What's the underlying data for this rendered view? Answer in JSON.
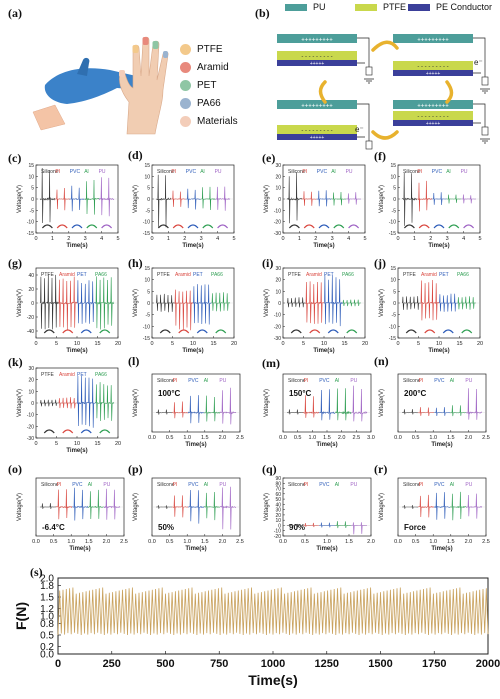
{
  "panel_labels": [
    "(a)",
    "(b)",
    "(c)",
    "(d)",
    "(e)",
    "(f)",
    "(g)",
    "(h)",
    "(i)",
    "(j)",
    "(k)",
    "(l)",
    "(m)",
    "(n)",
    "(o)",
    "(p)",
    "(q)",
    "(r)",
    "(s)"
  ],
  "legend_a": [
    {
      "label": "PTFE",
      "color": "#F3C98B"
    },
    {
      "label": "Aramid",
      "color": "#E8897C"
    },
    {
      "label": "PET",
      "color": "#8FC6A4"
    },
    {
      "label": "PA66",
      "color": "#9AB3CF"
    },
    {
      "label": "Materials",
      "color": "#F3CDB9"
    }
  ],
  "legend_b": [
    {
      "label": "PU",
      "color": "#4D9E9A"
    },
    {
      "label": "PTFE",
      "color": "#C9D84C"
    },
    {
      "label": "PE Conductor",
      "color": "#3B3F9A"
    }
  ],
  "b_charges": {
    "plus_long": "+++++++++",
    "minus_long": "- - - - - - - - -",
    "plus_short": "+++++",
    "electron": "e⁻"
  },
  "voltage_label": "Voltage(V)",
  "time_label": "Time(s)",
  "force_label": "F(N)",
  "chart_data": [
    {
      "id": "c",
      "type": "line",
      "series_names": [
        "Silicone",
        "PI",
        "PVC",
        "Al",
        "PU"
      ],
      "series_colors": [
        "#333333",
        "#D9463E",
        "#2C5BB8",
        "#2E9E52",
        "#9E62C4"
      ],
      "ylim": [
        -15,
        15
      ],
      "yticks": [
        15,
        10,
        5,
        0,
        -5,
        -10,
        -15
      ],
      "xticks": [
        0,
        1,
        2,
        3,
        4,
        5
      ],
      "peaks": [
        [
          14,
          -12
        ],
        [
          5,
          -5
        ],
        [
          6,
          -6
        ],
        [
          9,
          -7
        ],
        [
          10,
          -8
        ]
      ],
      "annotation": ""
    },
    {
      "id": "d",
      "type": "line",
      "series_names": [
        "Silicone",
        "PI",
        "PVC",
        "Al",
        "PU"
      ],
      "series_colors": [
        "#333333",
        "#D9463E",
        "#2C5BB8",
        "#2E9E52",
        "#9E62C4"
      ],
      "ylim": [
        -15,
        15
      ],
      "yticks": [
        15,
        10,
        5,
        0,
        -5,
        -10,
        -15
      ],
      "xticks": [
        0,
        1,
        2,
        3,
        4,
        5
      ],
      "peaks": [
        [
          12,
          -13
        ],
        [
          4,
          -4
        ],
        [
          5,
          -5
        ],
        [
          6,
          -5
        ],
        [
          6,
          -6
        ]
      ],
      "annotation": ""
    },
    {
      "id": "e",
      "type": "line",
      "series_names": [
        "Silicone",
        "PI",
        "PVC",
        "Al",
        "PU"
      ],
      "series_colors": [
        "#333333",
        "#D9463E",
        "#2C5BB8",
        "#2E9E52",
        "#9E62C4"
      ],
      "ylim": [
        -30,
        30
      ],
      "yticks": [
        30,
        20,
        10,
        0,
        -10,
        -20,
        -30
      ],
      "xticks": [
        0,
        1,
        2,
        3,
        4,
        5
      ],
      "peaks": [
        [
          25,
          -22
        ],
        [
          8,
          -6
        ],
        [
          8,
          -7
        ],
        [
          7,
          -6
        ],
        [
          6,
          -5
        ]
      ],
      "annotation": ""
    },
    {
      "id": "f",
      "type": "line",
      "series_names": [
        "Silicone",
        "PI",
        "PVC",
        "Al",
        "PU"
      ],
      "series_colors": [
        "#333333",
        "#D9463E",
        "#2C5BB8",
        "#2E9E52",
        "#9E62C4"
      ],
      "ylim": [
        -15,
        15
      ],
      "yticks": [
        15,
        10,
        5,
        0,
        -5,
        -10,
        -15
      ],
      "xticks": [
        0,
        1,
        2,
        3,
        4,
        5
      ],
      "peaks": [
        [
          12,
          -13
        ],
        [
          8,
          -6
        ],
        [
          3,
          -3
        ],
        [
          2,
          -2
        ],
        [
          2,
          -2
        ]
      ],
      "annotation": ""
    },
    {
      "id": "g",
      "type": "line",
      "series_names": [
        "PTFE",
        "Aramid",
        "PET",
        "PA66"
      ],
      "series_colors": [
        "#333333",
        "#D9463E",
        "#2C5BB8",
        "#2E9E52"
      ],
      "ylim": [
        -50,
        50
      ],
      "yticks": [
        40,
        20,
        0,
        -20,
        -40
      ],
      "xticks": [
        0,
        5,
        10,
        15,
        20
      ],
      "peaks": [
        [
          42,
          -40
        ],
        [
          38,
          -38
        ],
        [
          34,
          -32
        ],
        [
          40,
          -38
        ]
      ],
      "annotation": ""
    },
    {
      "id": "h",
      "type": "line",
      "series_names": [
        "PTFE",
        "Aramid",
        "PET",
        "PA66"
      ],
      "series_colors": [
        "#333333",
        "#D9463E",
        "#2C5BB8",
        "#2E9E52"
      ],
      "ylim": [
        -15,
        15
      ],
      "yticks": [
        15,
        10,
        5,
        0,
        -5,
        -10,
        -15
      ],
      "xticks": [
        0,
        5,
        10,
        15,
        20
      ],
      "peaks": [
        [
          4,
          -4
        ],
        [
          6,
          -12
        ],
        [
          9,
          -10
        ],
        [
          5,
          -4
        ]
      ],
      "annotation": ""
    },
    {
      "id": "i",
      "type": "line",
      "series_names": [
        "PTFE",
        "Aramid",
        "PET",
        "PA66"
      ],
      "series_colors": [
        "#333333",
        "#D9463E",
        "#2C5BB8",
        "#2E9E52"
      ],
      "ylim": [
        -30,
        30
      ],
      "yticks": [
        30,
        20,
        10,
        0,
        -10,
        -20,
        -30
      ],
      "xticks": [
        0,
        5,
        10,
        15,
        20
      ],
      "peaks": [
        [
          5,
          -4
        ],
        [
          20,
          -18
        ],
        [
          25,
          -20
        ],
        [
          3,
          -3
        ]
      ],
      "annotation": ""
    },
    {
      "id": "j",
      "type": "line",
      "series_names": [
        "PTFE",
        "Aramid",
        "PET",
        "PA66"
      ],
      "series_colors": [
        "#333333",
        "#D9463E",
        "#2C5BB8",
        "#2E9E52"
      ],
      "ylim": [
        -15,
        15
      ],
      "yticks": [
        15,
        10,
        5,
        0,
        -5,
        -10,
        -15
      ],
      "xticks": [
        0,
        5,
        10,
        15,
        20
      ],
      "peaks": [
        [
          3,
          -3
        ],
        [
          10,
          -8
        ],
        [
          4,
          -4
        ],
        [
          3,
          -3
        ]
      ],
      "annotation": ""
    },
    {
      "id": "k",
      "type": "line",
      "series_names": [
        "PTFE",
        "Aramid",
        "PET",
        "PA66"
      ],
      "series_colors": [
        "#333333",
        "#D9463E",
        "#2C5BB8",
        "#2E9E52"
      ],
      "ylim": [
        -30,
        30
      ],
      "yticks": [
        30,
        20,
        10,
        0,
        -10,
        -20,
        -30
      ],
      "xticks": [
        0,
        5,
        10,
        15,
        20
      ],
      "peaks": [
        [
          3,
          -3
        ],
        [
          5,
          -5
        ],
        [
          24,
          -22
        ],
        [
          18,
          -16
        ]
      ],
      "annotation": ""
    },
    {
      "id": "l",
      "type": "line",
      "series_names": [
        "Silicone",
        "PI",
        "PVC",
        "Al",
        "PU"
      ],
      "series_colors": [
        "#333333",
        "#D9463E",
        "#2C5BB8",
        "#2E9E52",
        "#9E62C4"
      ],
      "ylim": [
        -10,
        20
      ],
      "yticks": [],
      "xticks": [
        0.0,
        0.5,
        1.0,
        1.5,
        2.0,
        2.5
      ],
      "peaks": [
        [
          2,
          -1
        ],
        [
          6,
          -3
        ],
        [
          10,
          -6
        ],
        [
          9,
          -5
        ],
        [
          13,
          -7
        ]
      ],
      "annotation": "100°C"
    },
    {
      "id": "m",
      "type": "line",
      "series_names": [
        "Silicone",
        "PI",
        "PVC",
        "Al",
        "PU"
      ],
      "series_colors": [
        "#333333",
        "#D9463E",
        "#2C5BB8",
        "#2E9E52",
        "#9E62C4"
      ],
      "ylim": [
        -10,
        20
      ],
      "yticks": [],
      "xticks": [
        0.0,
        0.5,
        1.0,
        1.5,
        2.0,
        2.5,
        3.0
      ],
      "peaks": [
        [
          2,
          -1
        ],
        [
          10,
          -3
        ],
        [
          13,
          -4
        ],
        [
          14,
          -4
        ],
        [
          15,
          -5
        ]
      ],
      "annotation": "150°C"
    },
    {
      "id": "n",
      "type": "line",
      "series_names": [
        "Silicone",
        "PI",
        "PVC",
        "Al",
        "PU"
      ],
      "series_colors": [
        "#333333",
        "#D9463E",
        "#2C5BB8",
        "#2E9E52",
        "#9E62C4"
      ],
      "ylim": [
        -10,
        20
      ],
      "yticks": [],
      "xticks": [
        0.0,
        0.5,
        1.0,
        1.5,
        2.0,
        2.5
      ],
      "peaks": [
        [
          2,
          -1
        ],
        [
          3,
          -2
        ],
        [
          3,
          -2
        ],
        [
          4,
          -2
        ],
        [
          13,
          -4
        ]
      ],
      "annotation": "200°C"
    },
    {
      "id": "o",
      "type": "line",
      "series_names": [
        "Silicone",
        "PI",
        "PVC",
        "Al",
        "PU"
      ],
      "series_colors": [
        "#333333",
        "#D9463E",
        "#2C5BB8",
        "#2E9E52",
        "#9E62C4"
      ],
      "ylim": [
        -15,
        15
      ],
      "yticks": [],
      "xticks": [
        0.0,
        0.5,
        1.0,
        1.5,
        2.0,
        2.5
      ],
      "peaks": [
        [
          2,
          -1
        ],
        [
          10,
          -7
        ],
        [
          11,
          -7
        ],
        [
          10,
          -7
        ],
        [
          11,
          -8
        ]
      ],
      "annotation": "-6.4°C"
    },
    {
      "id": "p",
      "type": "line",
      "series_names": [
        "Silicone",
        "PI",
        "PVC",
        "Al",
        "PU"
      ],
      "series_colors": [
        "#333333",
        "#D9463E",
        "#2C5BB8",
        "#2E9E52",
        "#9E62C4"
      ],
      "ylim": [
        -15,
        15
      ],
      "yticks": [],
      "xticks": [
        0.0,
        0.5,
        1.0,
        1.5,
        2.0,
        2.5
      ],
      "peaks": [
        [
          1,
          -1
        ],
        [
          6,
          -6
        ],
        [
          9,
          -9
        ],
        [
          8,
          -7
        ],
        [
          12,
          -12
        ]
      ],
      "annotation": "50%"
    },
    {
      "id": "q",
      "type": "line",
      "series_names": [
        "Silicone",
        "PI",
        "PVC",
        "Al",
        "PU"
      ],
      "series_colors": [
        "#333333",
        "#D9463E",
        "#2C5BB8",
        "#2E9E52",
        "#9E62C4"
      ],
      "ylim": [
        -20,
        90
      ],
      "yticks": [
        90,
        80,
        70,
        60,
        50,
        40,
        30,
        20,
        10,
        0,
        -10,
        -20
      ],
      "xticks": [
        0.0,
        0.5,
        1.0,
        1.5,
        2.0
      ],
      "peaks": [
        [
          3,
          -2
        ],
        [
          5,
          -3
        ],
        [
          6,
          -4
        ],
        [
          9,
          -5
        ],
        [
          6,
          -18
        ]
      ],
      "annotation": "90%"
    },
    {
      "id": "r",
      "type": "line",
      "series_names": [
        "Silicone",
        "PI",
        "PVC",
        "Al",
        "PU"
      ],
      "series_colors": [
        "#333333",
        "#D9463E",
        "#2C5BB8",
        "#2E9E52",
        "#9E62C4"
      ],
      "ylim": [
        -15,
        15
      ],
      "yticks": [],
      "xticks": [
        0.0,
        0.5,
        1.0,
        1.5,
        2.0,
        2.5
      ],
      "peaks": [
        [
          1,
          -1
        ],
        [
          7,
          -6
        ],
        [
          8,
          -7
        ],
        [
          8,
          -7
        ],
        [
          7,
          -6
        ]
      ],
      "annotation": "Force"
    },
    {
      "id": "s",
      "type": "line",
      "title": "",
      "xlabel": "Time(s)",
      "ylabel": "F(N)",
      "xlim": [
        0,
        2000
      ],
      "ylim": [
        0.0,
        2.0
      ],
      "xticks": [
        0,
        250,
        500,
        750,
        1000,
        1250,
        1500,
        1750,
        2000
      ],
      "yticks": [
        0.0,
        0.2,
        0.5,
        0.8,
        1.0,
        1.2,
        1.5,
        1.8,
        2.0
      ],
      "series": [
        {
          "color": "#C9A25E",
          "min": 0.5,
          "max": 1.75,
          "cycles": 130
        }
      ]
    }
  ]
}
